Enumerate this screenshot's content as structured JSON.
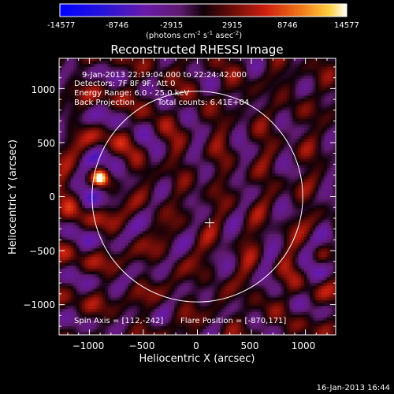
{
  "colorbar": {
    "ticks": [
      "-14577",
      "-8746",
      "-2915",
      "2915",
      "8746",
      "14577"
    ],
    "unit_main": "(photons cm",
    "unit_sup1": "-2",
    "unit_mid1": " s",
    "unit_sup2": "-1",
    "unit_mid2": " asec",
    "unit_sup3": "-2",
    "unit_end": ")",
    "range": [
      -14577,
      14577
    ]
  },
  "chart_data": {
    "type": "heatmap",
    "title": "Reconstructed RHESSI Image",
    "xlabel": "Heliocentric X (arcsec)",
    "ylabel": "Heliocentric Y (arcsec)",
    "xlim": [
      -1280,
      1280
    ],
    "ylim": [
      -1280,
      1280
    ],
    "xticks": [
      -1000,
      -500,
      0,
      500,
      1000
    ],
    "yticks": [
      -1000,
      -500,
      0,
      500,
      1000
    ],
    "xtick_labels": [
      "−1000",
      "−500",
      "0",
      "500",
      "1000"
    ],
    "ytick_labels": [
      "−1000",
      "−500",
      "0",
      "500",
      "1000"
    ],
    "solar_limb_radius_arcsec": 975,
    "map_center_marker": [
      112,
      -242
    ],
    "bright_source": {
      "x": -900,
      "y": 170
    },
    "annotations": {
      "time_range": "9-Jan-2013 22:19:04.000 to 22:24:42.000",
      "detectors": "Detectors: 7F 8F 9F, Att 0",
      "energy": "Energy Range: 6.0 - 25.0 keV",
      "method": "Back Projection",
      "total_counts": "Total counts: 6.41E+04",
      "spin_axis": "Spin Axis = [112,-242]",
      "flare_position": "Flare Position = [-870,171]"
    }
  },
  "footer": {
    "timestamp": "16-Jan-2013 16:44"
  }
}
